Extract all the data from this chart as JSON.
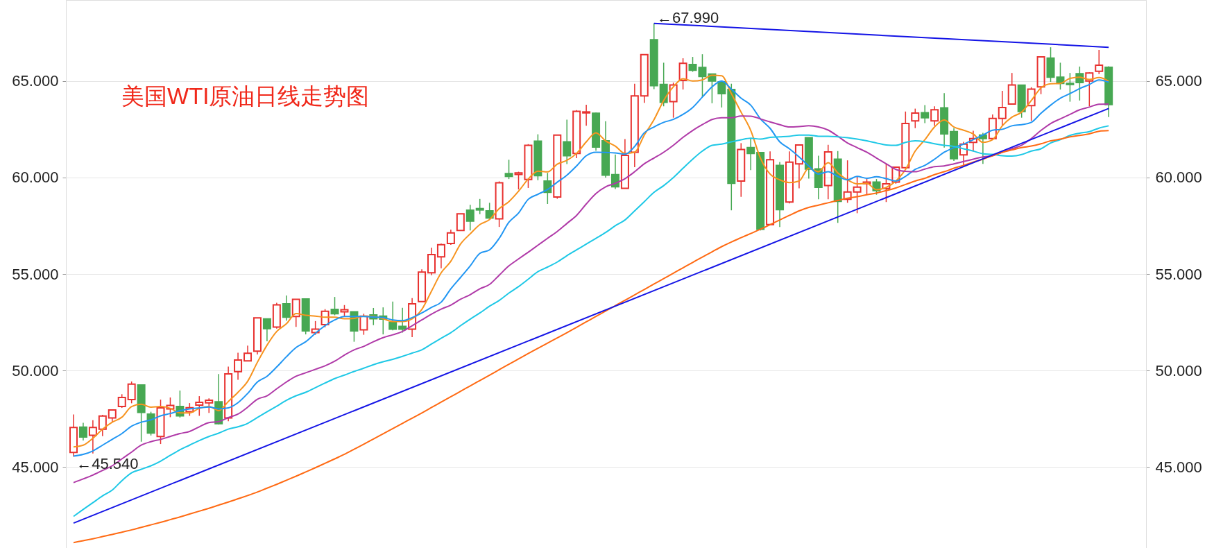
{
  "chart_data": {
    "type": "candlestick",
    "title": "美国WTI原油日线走势图",
    "categories": [
      null,
      null,
      null,
      null,
      null,
      null,
      null,
      null,
      null,
      null,
      null,
      null,
      null,
      null,
      null,
      null,
      null,
      null,
      null,
      null,
      null,
      null,
      null,
      null,
      null,
      null,
      null,
      null,
      null,
      null,
      null,
      null,
      null,
      null,
      null,
      null,
      null,
      null,
      null,
      null,
      null,
      null,
      null,
      null,
      null,
      null,
      null,
      null,
      null,
      null,
      null,
      null,
      null,
      null,
      null,
      null,
      null,
      null,
      null,
      null,
      null,
      null,
      null,
      null,
      null,
      null,
      null,
      null,
      null,
      null,
      null,
      null,
      null,
      null,
      null,
      null,
      null,
      null,
      null,
      null,
      null,
      null,
      null,
      null,
      null,
      null,
      null,
      null,
      null,
      null,
      null,
      null,
      null,
      null,
      null,
      null,
      null,
      null,
      null,
      null,
      null,
      null,
      null,
      null,
      null,
      null,
      null,
      null
    ],
    "ohlc": [
      [
        45.75,
        47.72,
        45.54,
        47.05
      ],
      [
        47.06,
        47.29,
        46.37,
        46.55
      ],
      [
        46.64,
        47.42,
        45.7,
        47.05
      ],
      [
        46.96,
        47.7,
        46.6,
        47.64
      ],
      [
        47.54,
        47.95,
        47.32,
        47.95
      ],
      [
        48.13,
        48.77,
        48.06,
        48.6
      ],
      [
        48.49,
        49.43,
        48.3,
        49.29
      ],
      [
        49.25,
        49.25,
        46.31,
        47.83
      ],
      [
        47.74,
        47.86,
        46.63,
        46.76
      ],
      [
        46.58,
        48.49,
        46.19,
        48.06
      ],
      [
        48.01,
        48.6,
        47.58,
        48.19
      ],
      [
        48.13,
        48.96,
        47.56,
        47.65
      ],
      [
        47.86,
        48.31,
        47.65,
        48.07
      ],
      [
        48.21,
        48.67,
        47.65,
        48.35
      ],
      [
        48.32,
        48.56,
        47.8,
        48.46
      ],
      [
        48.38,
        49.81,
        47.2,
        47.24
      ],
      [
        47.54,
        50.2,
        47.37,
        49.82
      ],
      [
        49.94,
        50.92,
        49.52,
        50.54
      ],
      [
        50.5,
        51.29,
        50.5,
        50.89
      ],
      [
        51.0,
        52.73,
        50.83,
        52.73
      ],
      [
        52.67,
        52.67,
        51.51,
        52.17
      ],
      [
        52.25,
        53.51,
        52.17,
        53.4
      ],
      [
        53.45,
        53.89,
        52.58,
        52.76
      ],
      [
        52.8,
        53.69,
        52.26,
        53.69
      ],
      [
        53.71,
        53.71,
        51.87,
        52.05
      ],
      [
        51.96,
        52.56,
        51.85,
        52.14
      ],
      [
        52.38,
        53.18,
        52.24,
        53.07
      ],
      [
        53.17,
        53.81,
        52.86,
        52.94
      ],
      [
        53.04,
        53.39,
        52.8,
        53.15
      ],
      [
        53.04,
        53.04,
        51.49,
        52.05
      ],
      [
        52.11,
        52.94,
        51.85,
        52.82
      ],
      [
        52.88,
        53.24,
        52.35,
        52.68
      ],
      [
        52.82,
        53.27,
        51.87,
        52.66
      ],
      [
        52.5,
        53.57,
        52.08,
        52.14
      ],
      [
        52.29,
        53.25,
        51.96,
        52.14
      ],
      [
        52.14,
        53.75,
        51.73,
        53.45
      ],
      [
        53.57,
        55.24,
        53.57,
        55.1
      ],
      [
        55.06,
        56.37,
        54.94,
        56.01
      ],
      [
        55.89,
        56.58,
        55.3,
        56.52
      ],
      [
        56.58,
        57.3,
        56.51,
        57.13
      ],
      [
        57.26,
        58.12,
        57.26,
        58.12
      ],
      [
        58.31,
        58.59,
        57.26,
        57.74
      ],
      [
        58.39,
        58.89,
        58.1,
        58.32
      ],
      [
        58.27,
        58.69,
        57.86,
        57.9
      ],
      [
        57.86,
        59.8,
        57.44,
        59.73
      ],
      [
        60.2,
        60.92,
        59.92,
        60.06
      ],
      [
        60.16,
        60.3,
        59.38,
        60.24
      ],
      [
        59.9,
        61.73,
        59.46,
        61.67
      ],
      [
        61.88,
        62.24,
        59.86,
        60.1
      ],
      [
        59.82,
        60.24,
        58.63,
        59.23
      ],
      [
        58.99,
        62.2,
        58.9,
        62.2
      ],
      [
        61.85,
        63.0,
        60.7,
        61.13
      ],
      [
        61.25,
        63.49,
        61.0,
        63.43
      ],
      [
        63.35,
        63.77,
        62.68,
        63.4
      ],
      [
        63.33,
        63.37,
        61.39,
        61.58
      ],
      [
        61.9,
        62.92,
        60.0,
        60.12
      ],
      [
        60.15,
        61.19,
        59.4,
        59.52
      ],
      [
        59.44,
        61.99,
        59.44,
        61.15
      ],
      [
        61.31,
        64.86,
        60.54,
        64.23
      ],
      [
        64.23,
        66.37,
        63.87,
        66.37
      ],
      [
        67.14,
        67.99,
        64.58,
        64.76
      ],
      [
        64.82,
        65.95,
        63.69,
        63.9
      ],
      [
        63.93,
        64.92,
        63.1,
        64.8
      ],
      [
        65.03,
        66.18,
        64.56,
        65.92
      ],
      [
        65.86,
        66.25,
        65.48,
        65.56
      ],
      [
        65.7,
        66.39,
        64.17,
        65.24
      ],
      [
        65.36,
        65.36,
        63.85,
        65.0
      ],
      [
        64.96,
        64.96,
        63.63,
        64.35
      ],
      [
        64.56,
        64.86,
        58.3,
        59.7
      ],
      [
        59.82,
        61.78,
        59.0,
        61.45
      ],
      [
        61.55,
        62.02,
        60.38,
        61.25
      ],
      [
        61.29,
        61.29,
        57.26,
        57.32
      ],
      [
        57.56,
        61.35,
        57.54,
        60.92
      ],
      [
        60.63,
        60.81,
        57.44,
        58.33
      ],
      [
        58.73,
        61.35,
        58.66,
        60.8
      ],
      [
        60.71,
        61.69,
        59.44,
        61.69
      ],
      [
        62.06,
        62.06,
        59.94,
        60.44
      ],
      [
        60.45,
        61.13,
        58.87,
        59.49
      ],
      [
        59.58,
        61.7,
        58.87,
        61.33
      ],
      [
        60.95,
        61.37,
        57.65,
        58.77
      ],
      [
        58.87,
        60.89,
        58.69,
        59.25
      ],
      [
        59.25,
        60.06,
        58.15,
        59.5
      ],
      [
        59.68,
        59.94,
        59.11,
        59.76
      ],
      [
        59.76,
        59.92,
        59.11,
        59.32
      ],
      [
        59.43,
        60.71,
        58.73,
        59.67
      ],
      [
        59.76,
        60.56,
        59.68,
        60.54
      ],
      [
        60.51,
        63.42,
        60.51,
        62.8
      ],
      [
        62.94,
        63.57,
        62.56,
        63.34
      ],
      [
        63.36,
        63.75,
        62.82,
        63.1
      ],
      [
        62.94,
        63.69,
        62.68,
        63.51
      ],
      [
        63.61,
        64.37,
        61.55,
        62.26
      ],
      [
        62.38,
        62.56,
        60.86,
        60.98
      ],
      [
        61.17,
        61.85,
        60.6,
        61.73
      ],
      [
        61.82,
        62.42,
        61.37,
        62.02
      ],
      [
        62.2,
        62.32,
        60.71,
        62.02
      ],
      [
        62.02,
        63.27,
        61.97,
        63.06
      ],
      [
        63.06,
        64.49,
        62.7,
        63.63
      ],
      [
        63.81,
        65.42,
        63.81,
        64.8
      ],
      [
        64.79,
        64.79,
        63.1,
        63.42
      ],
      [
        63.73,
        64.68,
        62.94,
        64.58
      ],
      [
        64.7,
        66.25,
        64.32,
        66.25
      ],
      [
        66.19,
        66.75,
        64.96,
        65.2
      ],
      [
        65.2,
        65.95,
        64.56,
        64.88
      ],
      [
        64.88,
        65.42,
        63.93,
        64.82
      ],
      [
        65.38,
        65.75,
        63.99,
        64.92
      ],
      [
        65.0,
        65.45,
        63.69,
        65.42
      ],
      [
        65.51,
        66.61,
        65.36,
        65.82
      ],
      [
        65.71,
        65.77,
        63.13,
        63.78
      ]
    ],
    "colors": [
      "#e8312f",
      "#47a853",
      "#e8312f",
      "#e8312f",
      "#e8312f",
      "#e8312f",
      "#e8312f",
      "#47a853",
      "#47a853",
      "#e8312f",
      "#e8312f",
      "#47a853",
      "#e8312f",
      "#e8312f",
      "#e8312f",
      "#47a853",
      "#e8312f",
      "#e8312f",
      "#e8312f",
      "#e8312f",
      "#47a853",
      "#e8312f",
      "#47a853",
      "#e8312f",
      "#47a853",
      "#e8312f",
      "#e8312f",
      "#47a853",
      "#e8312f",
      "#47a853",
      "#e8312f",
      "#47a853",
      "#47a853",
      "#47a853",
      "#47a853",
      "#e8312f",
      "#e8312f",
      "#e8312f",
      "#e8312f",
      "#e8312f",
      "#e8312f",
      "#47a853",
      "#47a853",
      "#47a853",
      "#e8312f",
      "#47a853",
      "#e8312f",
      "#e8312f",
      "#47a853",
      "#47a853",
      "#e8312f",
      "#47a853",
      "#e8312f",
      "#e8312f",
      "#47a853",
      "#47a853",
      "#47a853",
      "#e8312f",
      "#e8312f",
      "#e8312f",
      "#47a853",
      "#47a853",
      "#e8312f",
      "#e8312f",
      "#47a853",
      "#47a853",
      "#47a853",
      "#47a853",
      "#47a853",
      "#e8312f",
      "#47a853",
      "#47a853",
      "#e8312f",
      "#47a853",
      "#e8312f",
      "#e8312f",
      "#47a853",
      "#47a853",
      "#e8312f",
      "#47a853",
      "#e8312f",
      "#e8312f",
      "#e8312f",
      "#47a853",
      "#e8312f",
      "#e8312f",
      "#e8312f",
      "#e8312f",
      "#47a853",
      "#e8312f",
      "#47a853",
      "#47a853",
      "#e8312f",
      "#e8312f",
      "#47a853",
      "#e8312f",
      "#e8312f",
      "#e8312f",
      "#47a853",
      "#e8312f",
      "#e8312f",
      "#47a853",
      "#47a853",
      "#47a853",
      "#47a853",
      "#e8312f",
      "#e8312f",
      "#47a853"
    ],
    "series": [
      {
        "type": "line",
        "color": "#f7931e",
        "values": [
          46.04,
          46.13,
          46.49,
          46.96,
          47.32,
          47.58,
          48.13,
          48.25,
          48.1,
          48.13,
          48.04,
          47.8,
          47.8,
          48.04,
          48.13,
          47.92,
          48.39,
          48.87,
          49.44,
          50.42,
          51.31,
          52.02,
          52.42,
          52.95,
          52.86,
          52.82,
          52.76,
          52.76,
          52.68,
          52.7,
          52.82,
          52.8,
          52.68,
          52.54,
          52.54,
          52.68,
          53.16,
          54.11,
          55.06,
          55.66,
          56.55,
          57.08,
          57.56,
          57.82,
          58.39,
          58.75,
          59.29,
          59.92,
          60.33,
          60.29,
          60.69,
          60.89,
          61.25,
          61.85,
          62.32,
          61.9,
          61.63,
          61.25,
          61.31,
          62.2,
          63.0,
          63.99,
          64.7,
          65.12,
          65.0,
          65.06,
          65.3,
          65.27,
          64.35,
          63.39,
          62.44,
          61.01,
          60.18,
          59.88,
          59.74,
          59.82,
          60.48,
          60.3,
          60.77,
          60.24,
          59.88,
          59.67,
          59.7,
          59.37,
          59.49,
          59.82,
          60.42,
          61.37,
          61.96,
          62.62,
          62.98,
          62.62,
          62.45,
          62.26,
          61.82,
          61.96,
          62.68,
          63.13,
          63.39,
          63.99,
          64.64,
          64.86,
          64.88,
          65.14,
          65.2,
          65.08,
          65.18,
          64.99
        ]
      },
      {
        "type": "line",
        "color": "#2196f3",
        "values": [
          45.56,
          45.65,
          45.83,
          46.13,
          46.43,
          46.73,
          47.11,
          47.32,
          47.44,
          47.65,
          47.77,
          47.92,
          48.01,
          48.06,
          48.11,
          48.01,
          48.06,
          48.33,
          48.81,
          49.4,
          49.7,
          50.18,
          50.71,
          51.19,
          51.49,
          51.93,
          52.32,
          52.62,
          52.8,
          52.8,
          52.8,
          52.77,
          52.74,
          52.62,
          52.58,
          52.74,
          52.98,
          53.27,
          53.54,
          54.23,
          54.82,
          55.42,
          56.07,
          56.25,
          56.85,
          57.68,
          58.16,
          58.87,
          59.13,
          59.38,
          59.76,
          60.12,
          60.6,
          61.13,
          61.31,
          61.3,
          61.27,
          61.21,
          61.61,
          62.32,
          62.62,
          62.86,
          63.01,
          63.27,
          63.63,
          64.17,
          64.7,
          65.0,
          64.58,
          64.11,
          63.75,
          63.04,
          62.55,
          61.85,
          61.49,
          61.07,
          60.6,
          60.18,
          60.3,
          60.06,
          59.88,
          60.06,
          59.96,
          60.04,
          59.94,
          59.82,
          60.06,
          60.42,
          60.63,
          60.95,
          61.31,
          61.55,
          61.73,
          61.96,
          62.2,
          62.45,
          62.5,
          62.68,
          62.74,
          62.86,
          63.33,
          63.75,
          64.11,
          64.35,
          64.61,
          64.82,
          65.06,
          64.94
        ]
      },
      {
        "type": "line",
        "color": "#b03aa8",
        "values": [
          44.19,
          44.38,
          44.58,
          44.82,
          45.06,
          45.42,
          45.77,
          46.13,
          46.31,
          46.43,
          46.58,
          46.73,
          46.84,
          47.08,
          47.3,
          47.35,
          47.56,
          47.74,
          48.1,
          48.51,
          48.69,
          49.05,
          49.4,
          49.7,
          49.88,
          50.06,
          50.24,
          50.48,
          50.8,
          51.07,
          51.25,
          51.49,
          51.7,
          51.85,
          52.02,
          52.32,
          52.62,
          52.92,
          53.18,
          53.39,
          53.69,
          53.93,
          54.23,
          54.46,
          54.94,
          55.42,
          55.78,
          56.13,
          56.49,
          56.85,
          57.2,
          57.62,
          58.04,
          58.63,
          59.17,
          59.52,
          59.7,
          59.94,
          60.3,
          60.71,
          61.01,
          61.31,
          61.67,
          62.08,
          62.44,
          62.74,
          63.01,
          63.1,
          63.1,
          63.19,
          63.18,
          63.04,
          62.88,
          62.74,
          62.62,
          62.64,
          62.68,
          62.62,
          62.46,
          62.14,
          61.79,
          61.55,
          61.31,
          61.01,
          60.71,
          60.42,
          60.32,
          60.3,
          60.44,
          60.56,
          60.6,
          60.71,
          60.83,
          60.95,
          61.07,
          61.13,
          61.31,
          61.49,
          61.67,
          62.02,
          62.44,
          62.8,
          63.04,
          63.27,
          63.51,
          63.65,
          63.8,
          63.81
        ]
      },
      {
        "type": "line",
        "color": "#1ec8e6",
        "values": [
          42.44,
          42.8,
          43.15,
          43.5,
          43.8,
          44.29,
          44.7,
          44.88,
          45.06,
          45.3,
          45.6,
          45.89,
          46.13,
          46.37,
          46.58,
          46.75,
          46.96,
          47.08,
          47.26,
          47.56,
          47.86,
          48.15,
          48.45,
          48.69,
          48.87,
          49.11,
          49.35,
          49.58,
          49.76,
          49.95,
          50.12,
          50.3,
          50.45,
          50.58,
          50.73,
          50.9,
          51.07,
          51.37,
          51.67,
          51.96,
          52.32,
          52.66,
          52.98,
          53.33,
          53.63,
          54.01,
          54.35,
          54.73,
          55.12,
          55.36,
          55.62,
          55.95,
          56.25,
          56.55,
          56.85,
          57.15,
          57.5,
          57.8,
          58.27,
          58.75,
          59.23,
          59.58,
          60.0,
          60.48,
          60.95,
          61.37,
          61.67,
          61.73,
          61.85,
          61.96,
          62.04,
          61.99,
          62.08,
          62.11,
          62.14,
          62.2,
          62.2,
          62.14,
          62.14,
          62.11,
          62.06,
          61.99,
          61.9,
          61.79,
          61.69,
          61.67,
          61.82,
          61.9,
          61.85,
          61.75,
          61.67,
          61.61,
          61.49,
          61.37,
          61.23,
          61.2,
          61.13,
          61.11,
          61.19,
          61.37,
          61.49,
          61.79,
          61.96,
          62.18,
          62.3,
          62.38,
          62.56,
          62.68
        ]
      },
      {
        "type": "line",
        "color": "#ff6a13",
        "values": [
          41.08,
          41.18,
          41.28,
          41.39,
          41.5,
          41.62,
          41.74,
          41.87,
          42.0,
          42.13,
          42.27,
          42.41,
          42.56,
          42.71,
          42.86,
          43.02,
          43.18,
          43.35,
          43.52,
          43.7,
          43.9,
          44.1,
          44.31,
          44.52,
          44.74,
          44.96,
          45.19,
          45.42,
          45.66,
          45.92,
          46.18,
          46.45,
          46.72,
          46.99,
          47.26,
          47.53,
          47.8,
          48.08,
          48.36,
          48.64,
          48.92,
          49.2,
          49.48,
          49.76,
          50.04,
          50.32,
          50.6,
          50.88,
          51.15,
          51.42,
          51.69,
          51.96,
          52.24,
          52.52,
          52.8,
          53.08,
          53.36,
          53.64,
          53.92,
          54.2,
          54.48,
          54.76,
          55.04,
          55.32,
          55.6,
          55.88,
          56.15,
          56.42,
          56.66,
          56.88,
          57.1,
          57.32,
          57.56,
          57.8,
          58.04,
          58.27,
          58.45,
          58.57,
          58.69,
          58.81,
          58.93,
          59.01,
          59.11,
          59.2,
          59.32,
          59.46,
          59.64,
          59.82,
          59.96,
          60.15,
          60.3,
          60.48,
          60.63,
          60.8,
          60.95,
          61.13,
          61.31,
          61.43,
          61.55,
          61.63,
          61.75,
          61.9,
          61.99,
          62.11,
          62.18,
          62.26,
          62.4,
          62.43
        ]
      },
      {
        "type": "line",
        "axis": "y2",
        "color": "#1414e6",
        "values": [
          42.09,
          null,
          null,
          null,
          null,
          null,
          null,
          null,
          null,
          null,
          null,
          null,
          null,
          null,
          null,
          null,
          null,
          null,
          null,
          null,
          null,
          null,
          null,
          null,
          null,
          null,
          null,
          null,
          null,
          null,
          null,
          null,
          null,
          null,
          null,
          null,
          null,
          null,
          null,
          null,
          null,
          null,
          null,
          null,
          null,
          null,
          null,
          null,
          null,
          null,
          null,
          null,
          null,
          null,
          null,
          null,
          null,
          null,
          null,
          null,
          null,
          null,
          null,
          null,
          null,
          null,
          null,
          null,
          null,
          null,
          null,
          null,
          null,
          null,
          null,
          null,
          null,
          null,
          null,
          null,
          null,
          null,
          null,
          null,
          null,
          null,
          null,
          null,
          null,
          null,
          null,
          null,
          null,
          null,
          null,
          null,
          null,
          null,
          null,
          null,
          null,
          null,
          null,
          null,
          null,
          null,
          null,
          63.58
        ]
      },
      {
        "type": "line",
        "axis": "y2",
        "color": "#1414e6",
        "values": [
          null,
          null,
          null,
          null,
          null,
          null,
          null,
          null,
          null,
          null,
          null,
          null,
          null,
          null,
          null,
          null,
          null,
          null,
          null,
          null,
          null,
          null,
          null,
          null,
          null,
          null,
          null,
          null,
          null,
          null,
          null,
          null,
          null,
          null,
          null,
          null,
          null,
          null,
          null,
          null,
          null,
          null,
          null,
          null,
          null,
          null,
          null,
          null,
          null,
          null,
          null,
          null,
          null,
          null,
          null,
          null,
          null,
          null,
          null,
          null,
          67.99,
          null,
          null,
          null,
          null,
          null,
          null,
          null,
          null,
          null,
          null,
          null,
          null,
          null,
          null,
          null,
          null,
          null,
          null,
          null,
          null,
          null,
          null,
          null,
          null,
          null,
          null,
          null,
          null,
          null,
          null,
          null,
          null,
          null,
          null,
          null,
          null,
          null,
          null,
          null,
          null,
          null,
          null,
          null,
          null,
          null,
          null,
          66.75
        ]
      }
    ],
    "ylim": [
      40.8,
      69.2
    ],
    "yticks": [
      {
        "value": 45,
        "label": "45.000"
      },
      {
        "value": 50,
        "label": "50.000"
      },
      {
        "value": 55,
        "label": "55.000"
      },
      {
        "value": 60,
        "label": "60.000"
      },
      {
        "value": 65,
        "label": "65.000"
      }
    ],
    "y2lim": [
      40.8,
      69.2
    ],
    "y2ticks": [
      {
        "value": 45,
        "label": "45.000"
      },
      {
        "value": 50,
        "label": "50.000"
      },
      {
        "value": 55,
        "label": "55.000"
      },
      {
        "value": 60,
        "label": "60.000"
      },
      {
        "value": 65,
        "label": "65.000"
      }
    ],
    "grid": "y",
    "annotations": [
      "←67.990",
      "←45.540"
    ]
  }
}
